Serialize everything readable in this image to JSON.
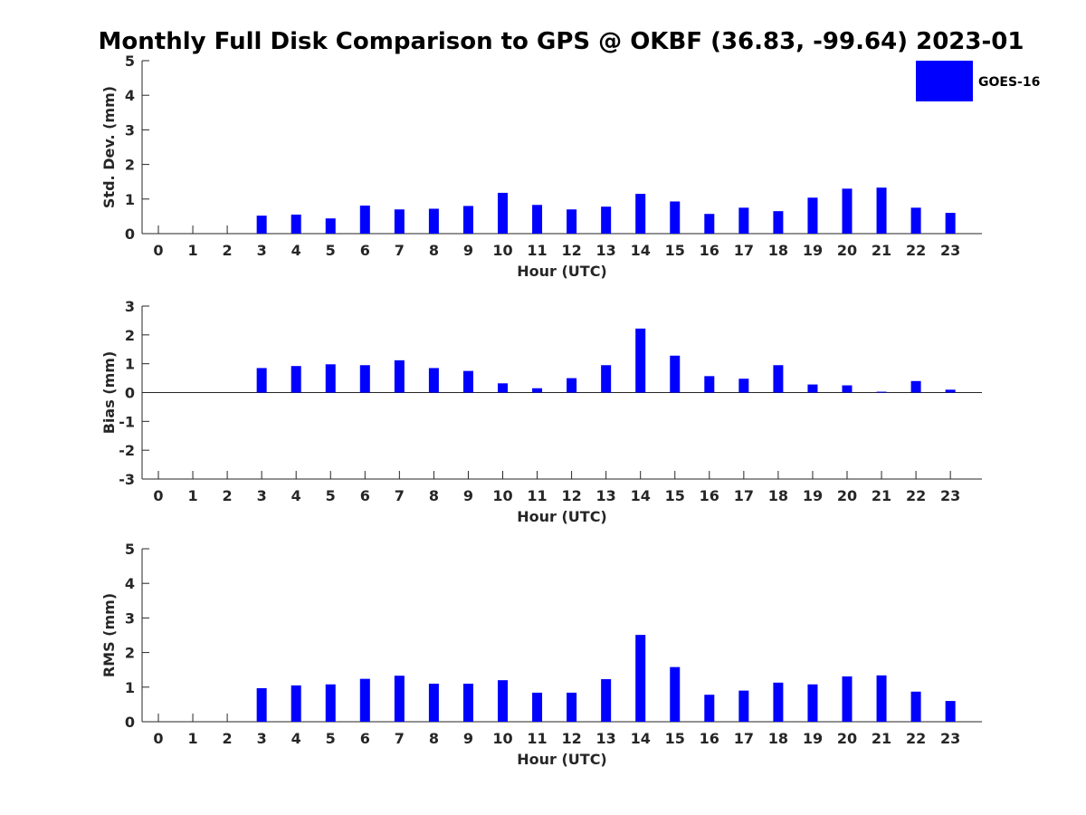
{
  "chart_data": {
    "type": "bar",
    "title": "Monthly Full Disk Comparison to GPS @ OKBF (36.83, -99.64) 2023-01",
    "legend": {
      "label": "GOES-16",
      "color": "#0000ff",
      "placement": "top-right"
    },
    "categories": [
      "0",
      "1",
      "2",
      "3",
      "4",
      "5",
      "6",
      "7",
      "8",
      "9",
      "10",
      "11",
      "12",
      "13",
      "14",
      "15",
      "16",
      "17",
      "18",
      "19",
      "20",
      "21",
      "22",
      "23"
    ],
    "panels": [
      {
        "key": "std",
        "ylabel": "Std. Dev. (mm)",
        "xlabel": "Hour (UTC)",
        "ylim": [
          0,
          5
        ],
        "yticks": [
          "5",
          "4",
          "3",
          "2",
          "1",
          "0"
        ],
        "values": [
          null,
          null,
          null,
          0.52,
          0.55,
          0.44,
          0.81,
          0.7,
          0.72,
          0.8,
          1.18,
          0.83,
          0.7,
          0.78,
          1.15,
          0.93,
          0.57,
          0.75,
          0.65,
          1.04,
          1.3,
          1.33,
          0.75,
          0.6
        ]
      },
      {
        "key": "bias",
        "ylabel": "Bias (mm)",
        "xlabel": "Hour (UTC)",
        "ylim": [
          -3,
          3
        ],
        "yticks": [
          "3",
          "2",
          "1",
          "0",
          "-1",
          "-2",
          "-3"
        ],
        "values": [
          null,
          null,
          null,
          0.85,
          0.92,
          0.98,
          0.95,
          1.12,
          0.85,
          0.75,
          0.32,
          0.15,
          0.5,
          0.95,
          2.22,
          1.28,
          0.57,
          0.48,
          0.95,
          0.28,
          0.25,
          0.03,
          0.4,
          0.1
        ]
      },
      {
        "key": "rms",
        "ylabel": "RMS (mm)",
        "xlabel": "Hour (UTC)",
        "ylim": [
          0,
          5
        ],
        "yticks": [
          "5",
          "4",
          "3",
          "2",
          "1",
          "0"
        ],
        "values": [
          null,
          null,
          null,
          0.97,
          1.05,
          1.08,
          1.24,
          1.33,
          1.1,
          1.1,
          1.2,
          0.84,
          0.84,
          1.23,
          2.51,
          1.58,
          0.78,
          0.9,
          1.13,
          1.08,
          1.31,
          1.34,
          0.87,
          0.6
        ]
      }
    ]
  }
}
